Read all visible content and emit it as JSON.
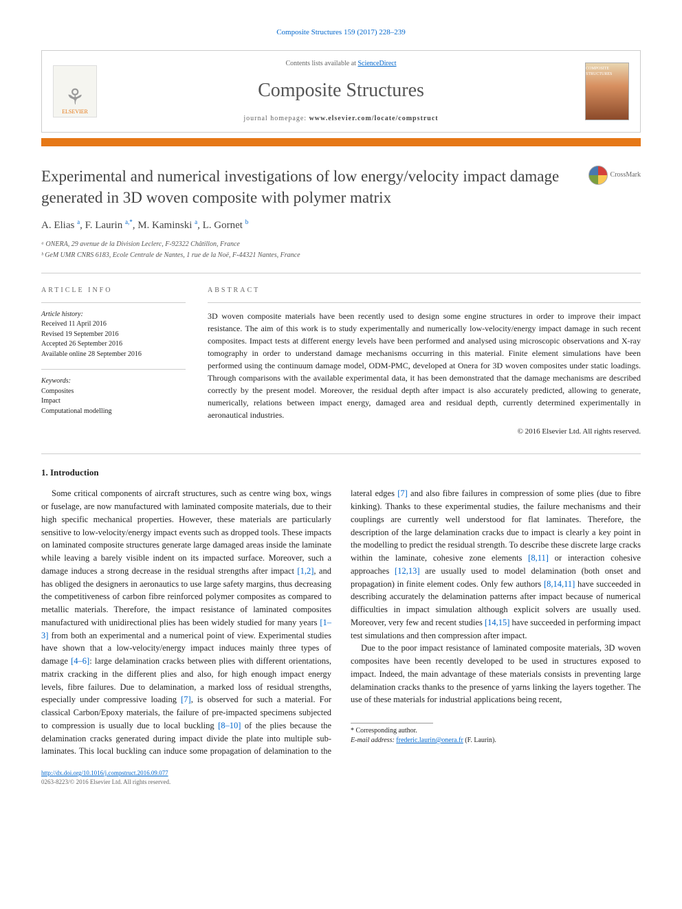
{
  "journal_ref": "Composite Structures 159 (2017) 228–239",
  "header": {
    "contents_prefix": "Contents lists available at ",
    "contents_link": "ScienceDirect",
    "journal_name": "Composite Structures",
    "homepage_label": "journal homepage: ",
    "homepage_url": "www.elsevier.com/locate/compstruct",
    "publisher_logo_text": "ELSEVIER",
    "thumb_text": "COMPOSITE STRUCTURES"
  },
  "colors": {
    "accent": "#e67817",
    "link": "#0066cc",
    "text": "#222222",
    "muted": "#666666",
    "rule": "#cccccc"
  },
  "title": "Experimental and numerical investigations of low energy/velocity impact damage generated in 3D woven composite with polymer matrix",
  "crossmark_label": "CrossMark",
  "authors_html": "A. Elias <sup>a</sup>, F. Laurin <sup>a,*</sup>, M. Kaminski <sup>a</sup>, L. Gornet <sup>b</sup>",
  "affiliations": [
    "ᵃ ONERA, 29 avenue de la Division Leclerc, F-92322 Châtillon, France",
    "ᵇ GeM UMR CNRS 6183, Ecole Centrale de Nantes, 1 rue de la Noë, F-44321 Nantes, France"
  ],
  "article_info": {
    "heading": "article info",
    "history_label": "Article history:",
    "history": [
      "Received 11 April 2016",
      "Revised 19 September 2016",
      "Accepted 26 September 2016",
      "Available online 28 September 2016"
    ],
    "keywords_label": "Keywords:",
    "keywords": [
      "Composites",
      "Impact",
      "Computational modelling"
    ]
  },
  "abstract": {
    "heading": "abstract",
    "text": "3D woven composite materials have been recently used to design some engine structures in order to improve their impact resistance. The aim of this work is to study experimentally and numerically low-velocity/energy impact damage in such recent composites. Impact tests at different energy levels have been performed and analysed using microscopic observations and X-ray tomography in order to understand damage mechanisms occurring in this material. Finite element simulations have been performed using the continuum damage model, ODM-PMC, developed at Onera for 3D woven composites under static loadings. Through comparisons with the available experimental data, it has been demonstrated that the damage mechanisms are described correctly by the present model. Moreover, the residual depth after impact is also accurately predicted, allowing to generate, numerically, relations between impact energy, damaged area and residual depth, currently determined experimentally in aeronautical industries.",
    "copyright": "© 2016 Elsevier Ltd. All rights reserved."
  },
  "intro": {
    "heading": "1. Introduction",
    "p1a": "Some critical components of aircraft structures, such as centre wing box, wings or fuselage, are now manufactured with laminated composite materials, due to their high specific mechanical properties. However, these materials are particularly sensitive to low-velocity/energy impact events such as dropped tools. These impacts on laminated composite structures generate large damaged areas inside the laminate while leaving a barely visible indent on its impacted surface. Moreover, such a damage induces a strong decrease in the residual strengths after impact ",
    "r1": "[1,2]",
    "p1b": ", and has obliged the designers in aeronautics to use large safety margins, thus decreasing the competitiveness of carbon fibre reinforced polymer composites as compared to metallic materials. Therefore, the impact resistance of laminated composites manufactured with unidirectional plies has been widely studied for many years ",
    "r2": "[1–3]",
    "p1c": " from both an experimental and a numerical point of view. Experimental studies have shown that a low-velocity/energy impact induces mainly three types of damage ",
    "r3": "[4–6]",
    "p1d": ": large delamination cracks between plies with different orientations, matrix cracking in the different plies and also, for high enough impact energy levels, fibre failures. Due to delamination, a marked loss of residual strengths, especially under compressive loading ",
    "r4": "[7]",
    "p1e": ", is observed for such a material. For classical Carbon/Epoxy materials, the failure of pre-impacted specimens subjected to compression is usually due to local buckling ",
    "r5": "[8–10]",
    "p1f": " of the plies because the delamination cracks generated during impact divide the plate into multiple sub-laminates. This local buckling can induce some propagation of delamination to the lateral edges ",
    "r6": "[7]",
    "p1g": " and also fibre failures in compression of some plies (due to fibre kinking). Thanks to these experimental studies, the failure mechanisms and their couplings are currently well understood for flat laminates. Therefore, the description of the large delamination cracks due to impact is clearly a key point in the modelling to predict the residual strength. To describe these discrete large cracks within the laminate, cohesive zone elements ",
    "r7": "[8,11]",
    "p1h": " or interaction cohesive approaches ",
    "r8": "[12,13]",
    "p1i": " are usually used to model delamination (both onset and propagation) in finite element codes. Only few authors ",
    "r9": "[8,14,11]",
    "p1j": " have succeeded in describing accurately the delamination patterns after impact because of numerical difficulties in impact simulation although explicit solvers are usually used. Moreover, very few and recent studies ",
    "r10": "[14,15]",
    "p1k": " have succeeded in performing impact test simulations and then compression after impact.",
    "p2": "Due to the poor impact resistance of laminated composite materials, 3D woven composites have been recently developed to be used in structures exposed to impact. Indeed, the main advantage of these materials consists in preventing large delamination cracks thanks to the presence of yarns linking the layers together. The use of these materials for industrial applications being recent,"
  },
  "footnote": {
    "corr_label": "* Corresponding author.",
    "email_label": "E-mail address: ",
    "email": "frederic.laurin@onera.fr",
    "email_suffix": " (F. Laurin)."
  },
  "bottom": {
    "doi": "http://dx.doi.org/10.1016/j.compstruct.2016.09.077",
    "issn_line": "0263-8223/© 2016 Elsevier Ltd. All rights reserved."
  }
}
